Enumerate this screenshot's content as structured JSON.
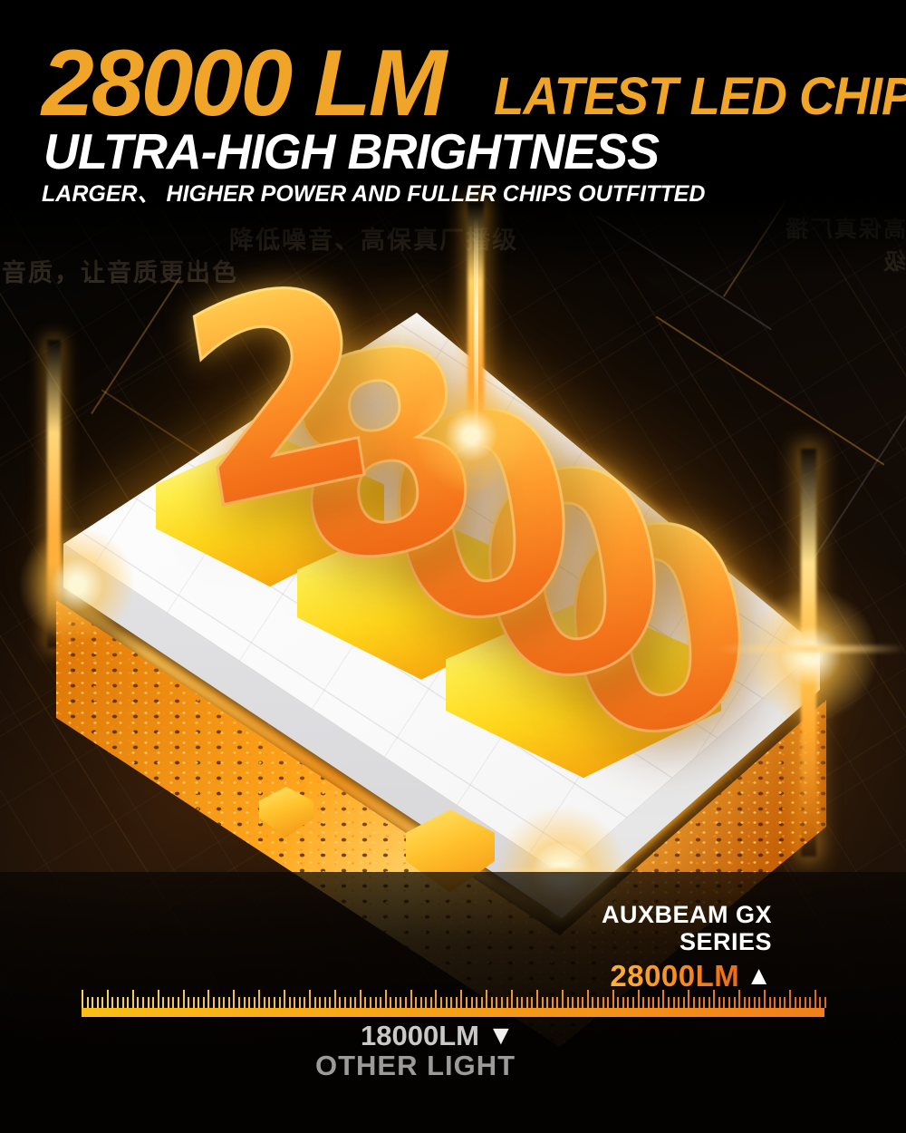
{
  "header": {
    "lumens": "28000 LM",
    "chip_label": "LATEST LED CHIP",
    "title": "ULTRA-HIGH BRIGHTNESS",
    "subtitle": "LARGER、 HIGHER POWER AND FULLER CHIPS OUTFITTED"
  },
  "hero": {
    "big_number": "28000",
    "digits": [
      "2",
      "8",
      "0",
      "0",
      "0"
    ]
  },
  "background_text": {
    "line1": "降低噪音、高保真厂播级",
    "line2": "音质，让音质更出色",
    "right_mirrored": "高保真厂播级"
  },
  "comparison": {
    "brand_line1": "AUXBEAM GX",
    "brand_line2": "SERIES",
    "brand_value": "28000LM",
    "up_marker": "▲",
    "other_value": "18000LM",
    "down_marker": "▼",
    "other_label": "OTHER LIGHT",
    "ruler": {
      "tick_count": 148,
      "major_every": 5,
      "minor_height": 12,
      "major_height": 20,
      "tick_color_start": "#F7D35E",
      "tick_color_end": "#DE6A15",
      "bar_color_start": "#FBBE16",
      "bar_color_end": "#F0801A"
    }
  },
  "colors": {
    "accent_orange": "#F0A428",
    "value_gradient_start": "#FFB23A",
    "value_gradient_end": "#ED6A12",
    "other_value_text": "#C9C9C9",
    "other_label_text": "#9B9B9B"
  }
}
